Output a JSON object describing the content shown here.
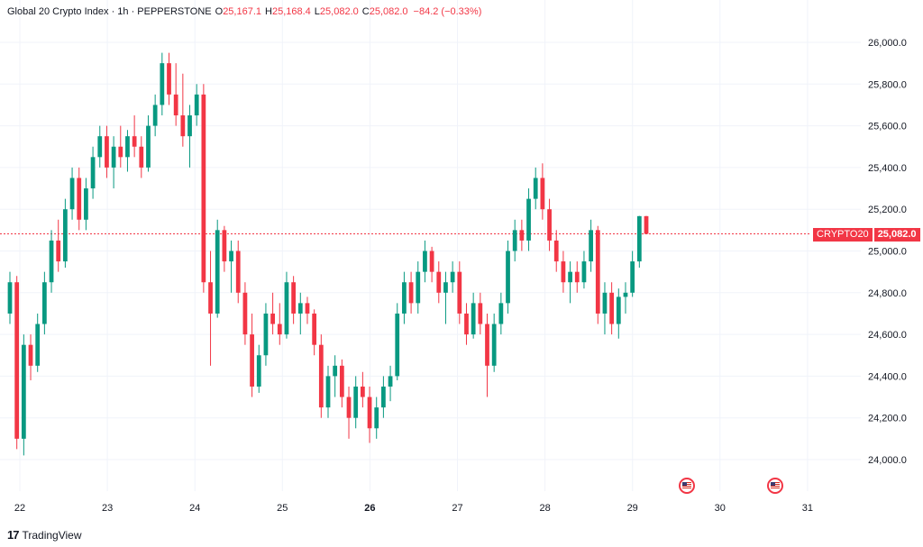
{
  "legend": {
    "symbol": "Global 20 Crypto Index · 1h · PEPPERSTONE",
    "o_label": "O",
    "o_value": "25,167.1",
    "h_label": "H",
    "h_value": "25,168.4",
    "l_label": "L",
    "l_value": "25,082.0",
    "c_label": "C",
    "c_value": "25,082.0",
    "change": "−84.2 (−0.33%)"
  },
  "price_tag": {
    "symbol": "CRYPTO20",
    "price": "25,082.0"
  },
  "brand": {
    "logo": "17",
    "name": "TradingView"
  },
  "colors": {
    "up": "#089981",
    "down": "#f23645",
    "grid": "#f0f3fa",
    "price_line": "#f23645"
  },
  "event_icons": [
    "us-flag-icon",
    "us-flag-icon"
  ],
  "chart_data": {
    "type": "candlestick",
    "title": "Global 20 Crypto Index · 1h · PEPPERSTONE",
    "ylim": [
      23850,
      26150
    ],
    "y_ticks": [
      24000,
      24200,
      24400,
      24600,
      24800,
      25000,
      25200,
      25400,
      25600,
      25800,
      26000
    ],
    "y_tick_labels": [
      "24,000.0",
      "24,200.0",
      "24,400.0",
      "24,600.0",
      "24,800.0",
      "25,000.0",
      "25,200.0",
      "25,400.0",
      "25,600.0",
      "25,800.0",
      "26,000.0"
    ],
    "x_ticks": [
      {
        "label": "22",
        "day": 22,
        "bold": false
      },
      {
        "label": "23",
        "day": 23,
        "bold": false
      },
      {
        "label": "24",
        "day": 24,
        "bold": false
      },
      {
        "label": "25",
        "day": 25,
        "bold": false
      },
      {
        "label": "26",
        "day": 26,
        "bold": true
      },
      {
        "label": "27",
        "day": 27,
        "bold": false
      },
      {
        "label": "28",
        "day": 28,
        "bold": false
      },
      {
        "label": "29",
        "day": 29,
        "bold": false
      },
      {
        "label": "30",
        "day": 30,
        "bold": false
      },
      {
        "label": "31",
        "day": 31,
        "bold": false
      }
    ],
    "last_price": 25082.0,
    "candles": [
      [
        24700,
        24900,
        24650,
        24850
      ],
      [
        24850,
        24880,
        24050,
        24100
      ],
      [
        24100,
        24600,
        24020,
        24550
      ],
      [
        24550,
        24600,
        24380,
        24450
      ],
      [
        24450,
        24700,
        24420,
        24650
      ],
      [
        24650,
        24900,
        24600,
        24850
      ],
      [
        24850,
        25100,
        24800,
        25050
      ],
      [
        25050,
        25150,
        24900,
        24950
      ],
      [
        24950,
        25250,
        24920,
        25200
      ],
      [
        25200,
        25400,
        25150,
        25350
      ],
      [
        25350,
        25400,
        25100,
        25150
      ],
      [
        25150,
        25350,
        25100,
        25300
      ],
      [
        25300,
        25500,
        25250,
        25450
      ],
      [
        25450,
        25600,
        25400,
        25550
      ],
      [
        25550,
        25600,
        25350,
        25400
      ],
      [
        25400,
        25550,
        25300,
        25500
      ],
      [
        25500,
        25600,
        25400,
        25450
      ],
      [
        25450,
        25580,
        25380,
        25550
      ],
      [
        25550,
        25650,
        25450,
        25500
      ],
      [
        25500,
        25550,
        25350,
        25400
      ],
      [
        25400,
        25650,
        25380,
        25600
      ],
      [
        25600,
        25750,
        25550,
        25700
      ],
      [
        25700,
        25950,
        25650,
        25900
      ],
      [
        25900,
        25950,
        25700,
        25750
      ],
      [
        25750,
        25900,
        25600,
        25650
      ],
      [
        25650,
        25850,
        25500,
        25550
      ],
      [
        25550,
        25700,
        25400,
        25650
      ],
      [
        25650,
        25800,
        25600,
        25750
      ],
      [
        25750,
        25800,
        24800,
        24850
      ],
      [
        24850,
        25000,
        24450,
        24700
      ],
      [
        24700,
        25150,
        24680,
        25100
      ],
      [
        25100,
        25120,
        24900,
        24950
      ],
      [
        24950,
        25050,
        24800,
        25000
      ],
      [
        25000,
        25050,
        24750,
        24800
      ],
      [
        24800,
        24850,
        24550,
        24600
      ],
      [
        24600,
        24700,
        24300,
        24350
      ],
      [
        24350,
        24550,
        24320,
        24500
      ],
      [
        24500,
        24750,
        24450,
        24700
      ],
      [
        24700,
        24800,
        24600,
        24650
      ],
      [
        24650,
        24750,
        24550,
        24600
      ],
      [
        24600,
        24900,
        24580,
        24850
      ],
      [
        24850,
        24880,
        24650,
        24700
      ],
      [
        24700,
        24800,
        24600,
        24750
      ],
      [
        24750,
        24780,
        24650,
        24700
      ],
      [
        24700,
        24720,
        24500,
        24550
      ],
      [
        24550,
        24600,
        24200,
        24250
      ],
      [
        24250,
        24450,
        24200,
        24400
      ],
      [
        24400,
        24500,
        24300,
        24450
      ],
      [
        24450,
        24480,
        24250,
        24300
      ],
      [
        24300,
        24350,
        24100,
        24200
      ],
      [
        24200,
        24400,
        24150,
        24350
      ],
      [
        24350,
        24420,
        24250,
        24300
      ],
      [
        24300,
        24350,
        24080,
        24150
      ],
      [
        24150,
        24300,
        24100,
        24250
      ],
      [
        24250,
        24400,
        24200,
        24350
      ],
      [
        24350,
        24450,
        24280,
        24400
      ],
      [
        24400,
        24750,
        24380,
        24700
      ],
      [
        24700,
        24900,
        24650,
        24850
      ],
      [
        24850,
        24900,
        24700,
        24750
      ],
      [
        24750,
        24950,
        24700,
        24900
      ],
      [
        24900,
        25050,
        24850,
        25000
      ],
      [
        25000,
        25020,
        24850,
        24900
      ],
      [
        24900,
        24950,
        24750,
        24800
      ],
      [
        24800,
        24900,
        24650,
        24850
      ],
      [
        24850,
        24950,
        24800,
        24900
      ],
      [
        24900,
        24950,
        24650,
        24700
      ],
      [
        24700,
        24750,
        24550,
        24600
      ],
      [
        24600,
        24800,
        24580,
        24750
      ],
      [
        24750,
        24800,
        24600,
        24650
      ],
      [
        24650,
        24700,
        24300,
        24450
      ],
      [
        24450,
        24700,
        24420,
        24650
      ],
      [
        24650,
        24800,
        24600,
        24750
      ],
      [
        24750,
        25050,
        24700,
        25000
      ],
      [
        25000,
        25150,
        24950,
        25100
      ],
      [
        25100,
        25150,
        25000,
        25050
      ],
      [
        25050,
        25300,
        25000,
        25250
      ],
      [
        25250,
        25400,
        25200,
        25350
      ],
      [
        25350,
        25420,
        25150,
        25200
      ],
      [
        25200,
        25250,
        25000,
        25050
      ],
      [
        25050,
        25100,
        24900,
        24950
      ],
      [
        24950,
        25000,
        24800,
        24850
      ],
      [
        24850,
        24950,
        24750,
        24900
      ],
      [
        24900,
        24950,
        24800,
        24850
      ],
      [
        24850,
        25000,
        24820,
        24950
      ],
      [
        24950,
        25150,
        24900,
        25100
      ],
      [
        25100,
        25120,
        24650,
        24700
      ],
      [
        24700,
        24850,
        24600,
        24800
      ],
      [
        24800,
        24850,
        24600,
        24650
      ],
      [
        24650,
        24820,
        24580,
        24780
      ],
      [
        24780,
        24850,
        24700,
        24800
      ],
      [
        24800,
        25000,
        24780,
        24950
      ],
      [
        24950,
        25168,
        24920,
        25167
      ],
      [
        25167,
        25168,
        25082,
        25082
      ]
    ]
  }
}
